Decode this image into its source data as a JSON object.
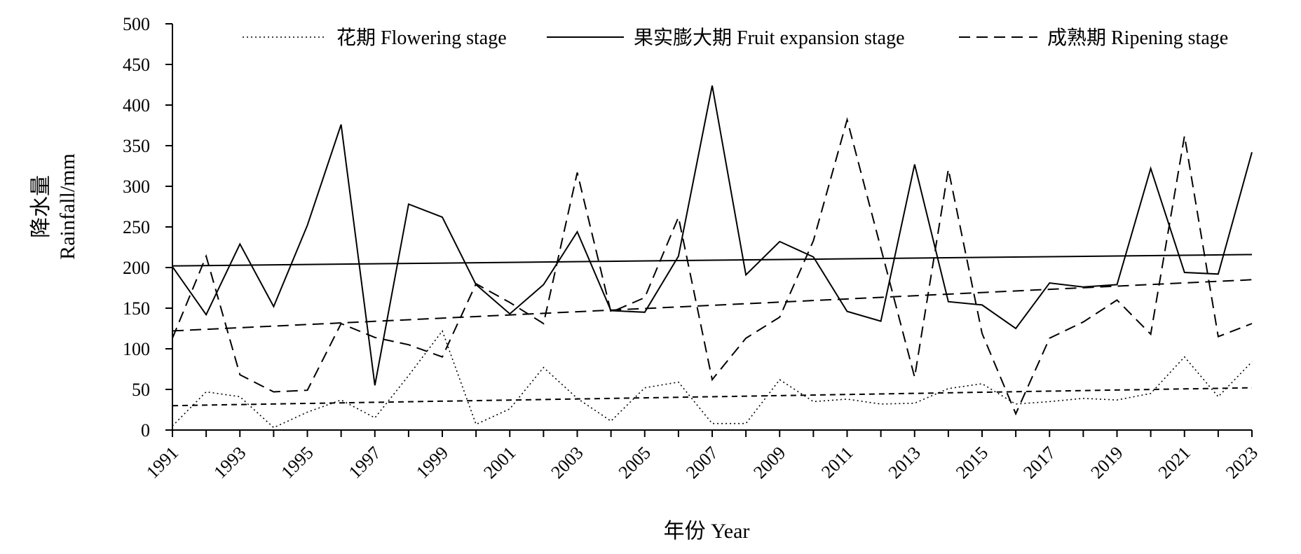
{
  "chart_data": {
    "type": "line",
    "title": "",
    "xlabel": "年份 Year",
    "ylabel_line1": "降水量",
    "ylabel_line2": "Rainfall/mm",
    "ylim": [
      0,
      500
    ],
    "yticks": [
      0,
      50,
      100,
      150,
      200,
      250,
      300,
      350,
      400,
      450,
      500
    ],
    "x": [
      1991,
      1992,
      1993,
      1994,
      1995,
      1996,
      1997,
      1998,
      1999,
      2000,
      2001,
      2002,
      2003,
      2004,
      2005,
      2006,
      2007,
      2008,
      2009,
      2010,
      2011,
      2012,
      2013,
      2014,
      2015,
      2016,
      2017,
      2018,
      2019,
      2020,
      2021,
      2022,
      2023
    ],
    "xticks": [
      1991,
      1993,
      1995,
      1997,
      1999,
      2001,
      2003,
      2005,
      2007,
      2009,
      2011,
      2013,
      2015,
      2017,
      2019,
      2021,
      2023
    ],
    "grid": false,
    "legend_position": "top",
    "series": [
      {
        "name": "花期 Flowering stage",
        "style": "dotted",
        "values": [
          5,
          47,
          41,
          3,
          22,
          37,
          15,
          67,
          122,
          7,
          26,
          77,
          39,
          11,
          52,
          59,
          8,
          8,
          62,
          35,
          38,
          32,
          33,
          51,
          57,
          32,
          35,
          39,
          37,
          45,
          90,
          41,
          84
        ],
        "trend": [
          30,
          52
        ]
      },
      {
        "name": "果实膨大期 Fruit expansion stage",
        "style": "solid",
        "values": [
          201,
          142,
          229,
          152,
          252,
          376,
          55,
          278,
          262,
          179,
          143,
          179,
          244,
          147,
          145,
          214,
          424,
          191,
          232,
          213,
          146,
          134,
          327,
          158,
          154,
          125,
          181,
          176,
          179,
          322,
          194,
          192,
          342
        ],
        "trend": [
          202,
          216
        ]
      },
      {
        "name": "成熟期 Ripening stage",
        "style": "dashed",
        "values": [
          113,
          214,
          68,
          47,
          49,
          131,
          114,
          105,
          90,
          180,
          157,
          131,
          317,
          145,
          163,
          262,
          62,
          113,
          139,
          233,
          382,
          224,
          65,
          321,
          119,
          20,
          113,
          133,
          160,
          118,
          362,
          115,
          131
        ],
        "trend": [
          122,
          185
        ]
      }
    ]
  }
}
